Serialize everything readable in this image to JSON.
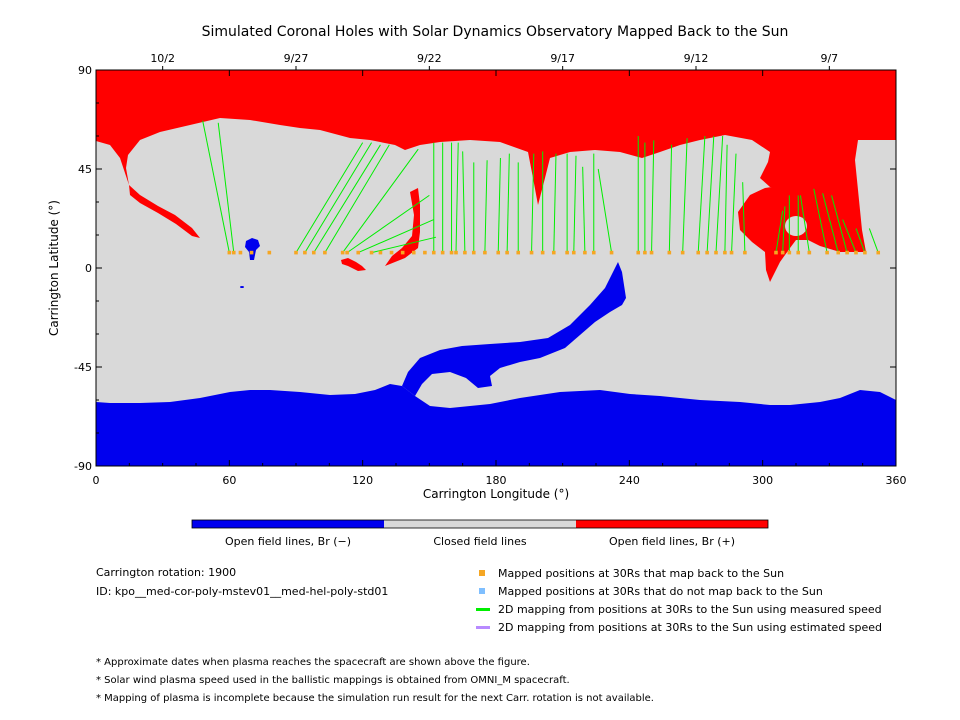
{
  "chart_data": {
    "type": "heatmap",
    "title": "Simulated Coronal Holes with Solar Dynamics Observatory Mapped Back to the Sun",
    "xlabel": "Carrington Longitude (°)",
    "ylabel": "Carrington Latitude (°)",
    "xlim": [
      0,
      360
    ],
    "ylim": [
      -90,
      90
    ],
    "x_ticks": [
      "0",
      "60",
      "120",
      "180",
      "240",
      "300",
      "360"
    ],
    "y_ticks": [
      "90",
      "45",
      "0",
      "-45",
      "-90"
    ],
    "top_date_ticks": [
      {
        "label": "10/2",
        "lon": 30
      },
      {
        "label": "9/27",
        "lon": 90
      },
      {
        "label": "9/22",
        "lon": 150
      },
      {
        "label": "9/17",
        "lon": 210
      },
      {
        "label": "9/12",
        "lon": 270
      },
      {
        "label": "9/7",
        "lon": 330
      }
    ],
    "colorbar": [
      {
        "label": "Open field lines, Br (−)",
        "color": "#0000ee"
      },
      {
        "label": "Closed field lines",
        "color": "#d9d9d9"
      },
      {
        "label": "Open field lines, Br (+)",
        "color": "#ff0000"
      }
    ],
    "mapping_lines": [
      [
        60,
        7,
        48,
        67
      ],
      [
        62,
        7,
        55,
        66
      ],
      [
        90,
        7,
        120,
        57
      ],
      [
        94,
        7,
        124,
        57
      ],
      [
        98,
        7,
        128,
        56
      ],
      [
        103,
        7,
        132,
        56
      ],
      [
        111,
        7,
        145,
        54
      ],
      [
        113,
        7,
        150,
        33
      ],
      [
        118,
        7,
        152,
        22
      ],
      [
        124,
        7,
        153,
        14
      ],
      [
        152,
        7,
        152,
        57
      ],
      [
        156,
        7,
        156,
        57
      ],
      [
        160,
        7,
        160,
        57
      ],
      [
        162,
        7,
        163,
        57
      ],
      [
        166,
        7,
        165,
        53
      ],
      [
        170,
        7,
        170,
        48
      ],
      [
        175,
        7,
        176,
        49
      ],
      [
        181,
        7,
        182,
        50
      ],
      [
        185,
        7,
        186,
        52
      ],
      [
        190,
        7,
        190,
        48
      ],
      [
        196,
        7,
        197,
        52
      ],
      [
        201,
        7,
        201,
        53
      ],
      [
        206,
        7,
        207,
        52
      ],
      [
        212,
        7,
        212,
        52
      ],
      [
        215,
        7,
        216,
        51
      ],
      [
        220,
        7,
        219,
        46
      ],
      [
        224,
        7,
        224,
        52
      ],
      [
        232,
        7,
        226,
        45
      ],
      [
        244,
        7,
        244,
        60
      ],
      [
        247,
        7,
        247,
        57
      ],
      [
        250,
        7,
        251,
        58
      ],
      [
        258,
        7,
        259,
        56
      ],
      [
        264,
        7,
        266,
        59
      ],
      [
        271,
        7,
        274,
        60
      ],
      [
        275,
        7,
        278,
        60
      ],
      [
        279,
        7,
        282,
        60
      ],
      [
        283,
        7,
        284,
        56
      ],
      [
        286,
        7,
        288,
        52
      ],
      [
        292,
        7,
        291,
        39
      ],
      [
        306,
        7,
        309,
        26
      ],
      [
        309,
        7,
        310,
        28
      ],
      [
        312,
        7,
        312,
        33
      ],
      [
        316,
        7,
        316,
        33
      ],
      [
        321,
        7,
        317,
        33
      ],
      [
        329,
        7,
        323,
        36
      ],
      [
        334,
        7,
        327,
        34
      ],
      [
        338,
        7,
        331,
        33
      ],
      [
        342,
        7,
        336,
        22
      ],
      [
        346,
        7,
        342,
        18
      ],
      [
        352,
        7,
        348,
        18
      ]
    ],
    "mapped_positions_lon": [
      60,
      62,
      65,
      70,
      78,
      90,
      94,
      98,
      103,
      111,
      113,
      118,
      124,
      128,
      133,
      138,
      143,
      148,
      152,
      156,
      160,
      162,
      166,
      170,
      175,
      181,
      185,
      190,
      196,
      201,
      206,
      212,
      215,
      220,
      224,
      232,
      244,
      247,
      250,
      258,
      264,
      271,
      275,
      279,
      283,
      286,
      292,
      306,
      309,
      312,
      316,
      321,
      329,
      334,
      338,
      342,
      346,
      352
    ],
    "mapped_positions_lat": 7,
    "legend": [
      {
        "label": "Mapped positions at 30Rs that map back to the Sun",
        "color": "#f5a623",
        "marker": "square"
      },
      {
        "label": "Mapped positions at 30Rs that do not map back to the Sun",
        "color": "#7fbfff",
        "marker": "square"
      },
      {
        "label": "2D mapping from positions at 30Rs to the Sun using measured speed",
        "color": "#00ee00",
        "marker": "line"
      },
      {
        "label": "2D mapping from positions at 30Rs to the Sun using estimated speed",
        "color": "#b88aff",
        "marker": "line"
      }
    ]
  },
  "info": {
    "rotation": "Carrington rotation: 1900",
    "id": "ID: kpo__med-cor-poly-mstev01__med-hel-poly-std01"
  },
  "notes": [
    "* Approximate dates when plasma reaches the spacecraft are shown above the figure.",
    "* Solar wind plasma speed used in the ballistic mappings is obtained from OMNI_M spacecraft.",
    "* Mapping of plasma is incomplete because the simulation run result for the next Carr. rotation is not available."
  ],
  "colors": {
    "closed": "#d9d9d9",
    "negative": "#0000ee",
    "positive": "#ff0000",
    "mapping": "#00ee00",
    "mapped_point": "#f5a623"
  }
}
